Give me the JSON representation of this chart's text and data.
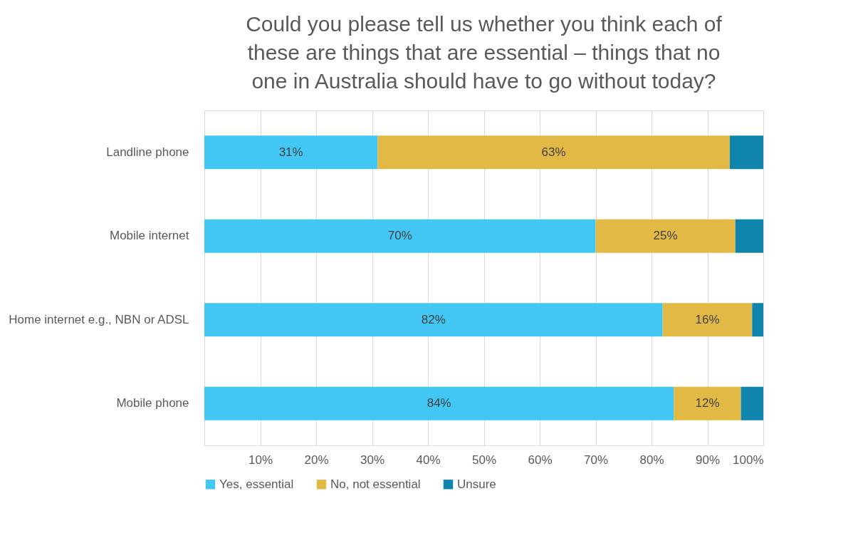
{
  "chart_data": {
    "type": "bar",
    "orientation": "horizontal",
    "stacked": true,
    "title": "Could you please tell us whether you think each of these are things that are essential – things that no one in Australia should have to go without today?",
    "categories": [
      "Landline phone",
      "Mobile internet",
      "Home internet e.g., NBN or ADSL",
      "Mobile phone"
    ],
    "series": [
      {
        "name": "Yes, essential",
        "color": "#42c7f4",
        "values": [
          31,
          70,
          82,
          84
        ],
        "value_labels": [
          "31%",
          "70%",
          "82%",
          "84%"
        ]
      },
      {
        "name": "No, not essential",
        "color": "#e3b946",
        "values": [
          63,
          25,
          16,
          12
        ],
        "value_labels": [
          "63%",
          "25%",
          "16%",
          "12%"
        ]
      },
      {
        "name": "Unsure",
        "color": "#0f85ae",
        "values": [
          6,
          5,
          2,
          4
        ],
        "value_labels": [
          null,
          null,
          null,
          null
        ]
      }
    ],
    "xlim": [
      0,
      100
    ],
    "xticks": [
      {
        "value": 0,
        "label": null
      },
      {
        "value": 10,
        "label": "10%"
      },
      {
        "value": 20,
        "label": "20%"
      },
      {
        "value": 30,
        "label": "30%"
      },
      {
        "value": 40,
        "label": "40%"
      },
      {
        "value": 50,
        "label": "50%"
      },
      {
        "value": 60,
        "label": "60%"
      },
      {
        "value": 70,
        "label": "70%"
      },
      {
        "value": 80,
        "label": "80%"
      },
      {
        "value": 90,
        "label": "90%"
      },
      {
        "value": 100,
        "label": "100%"
      }
    ],
    "grid": "x",
    "legend": "bottom"
  }
}
